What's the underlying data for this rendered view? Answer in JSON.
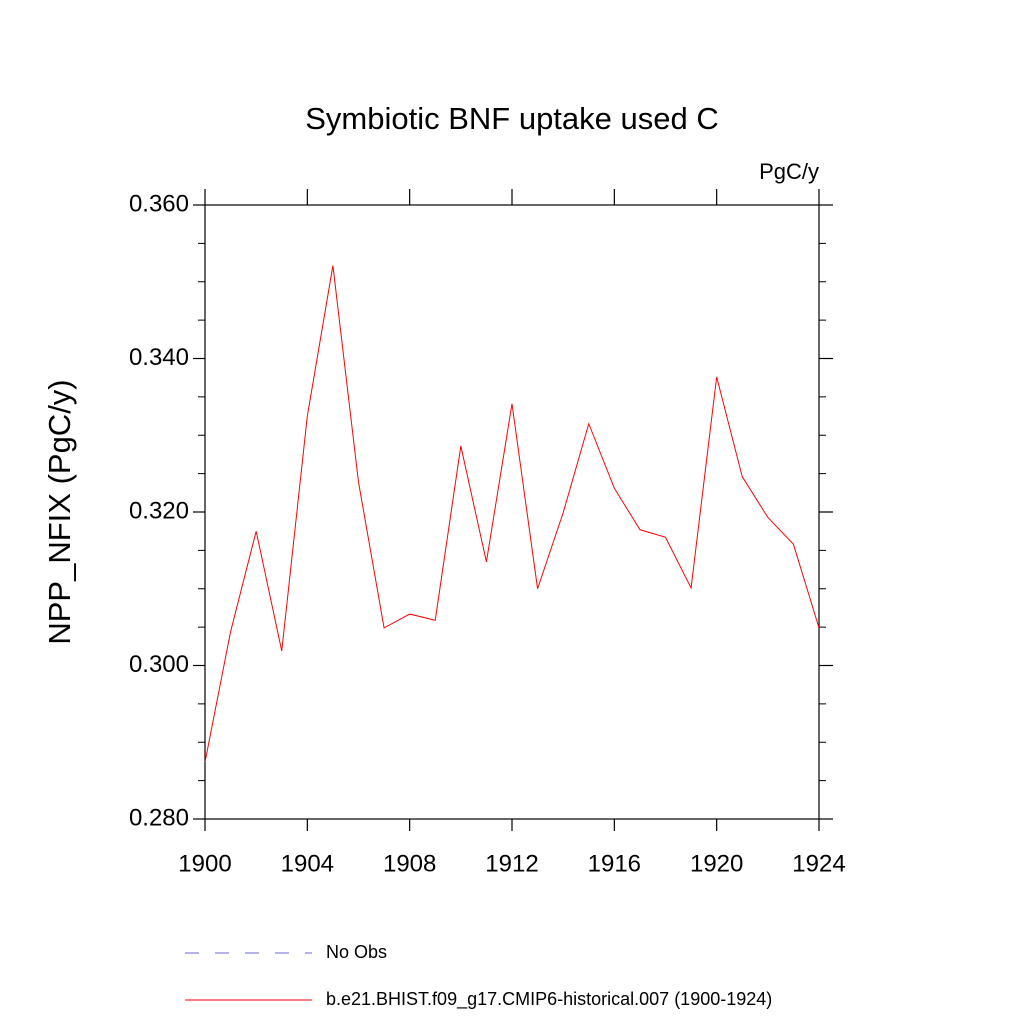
{
  "chart_data": {
    "type": "line",
    "title": "Symbiotic BNF uptake used C",
    "units": "PgC/y",
    "y_label": "NPP_NFIX  (PgC/y)",
    "x": [
      1900,
      1901,
      1902,
      1903,
      1904,
      1905,
      1906,
      1907,
      1908,
      1909,
      1910,
      1911,
      1912,
      1913,
      1914,
      1915,
      1916,
      1917,
      1918,
      1919,
      1920,
      1921,
      1922,
      1923,
      1924
    ],
    "series": [
      {
        "name": "No Obs",
        "color": "#6a6ad0",
        "dashed": true,
        "values": [
          null,
          null,
          null,
          null,
          null,
          null,
          null,
          null,
          null,
          null,
          null,
          null,
          null,
          null,
          null,
          null,
          null,
          null,
          null,
          null,
          null,
          null,
          null,
          null,
          null
        ]
      },
      {
        "name": "b.e21.BHIST.f09_g17.CMIP6-historical.007 (1900-1924)",
        "color": "#ff0000",
        "dashed": false,
        "values": [
          0.2874,
          0.3044,
          0.3175,
          0.3019,
          0.3325,
          0.3521,
          0.3239,
          0.3049,
          0.3067,
          0.3059,
          0.3286,
          0.3135,
          0.3341,
          0.31,
          0.3199,
          0.3315,
          0.3231,
          0.3177,
          0.3167,
          0.3101,
          0.3376,
          0.3246,
          0.3193,
          0.3158,
          0.3049
        ]
      }
    ],
    "xlim": [
      1900,
      1924
    ],
    "xticks": [
      1900,
      1904,
      1908,
      1912,
      1916,
      1920,
      1924
    ],
    "ylim": [
      0.28,
      0.36
    ],
    "yticks": [
      {
        "value": 0.28,
        "label": "0.280"
      },
      {
        "value": 0.3,
        "label": "0.300"
      },
      {
        "value": 0.32,
        "label": "0.320"
      },
      {
        "value": 0.34,
        "label": "0.340"
      },
      {
        "value": 0.36,
        "label": "0.360"
      }
    ],
    "yminorticks": [
      0.285,
      0.29,
      0.295,
      0.305,
      0.31,
      0.315,
      0.325,
      0.33,
      0.335,
      0.345,
      0.35,
      0.355
    ]
  }
}
